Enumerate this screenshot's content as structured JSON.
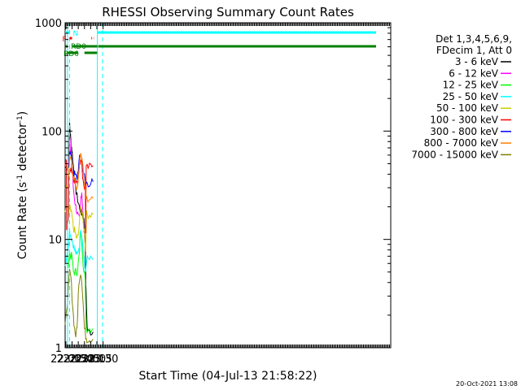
{
  "chart_data": {
    "type": "line",
    "title": "RHESSI Observing Summary Count Rates",
    "xlabel": "Start Time (04-Jul-13 21:58:22)",
    "ylabel_main": "Count Rate (s",
    "ylabel_sup1": "-1",
    "ylabel_mid": " detector",
    "ylabel_sup2": "-1",
    "ylabel_end": ")",
    "yscale": "log",
    "ylim": [
      1,
      1000
    ],
    "xlim_minutes": [
      21.97,
      35.1
    ],
    "xtick_labels": [
      "22:00",
      "22:15",
      "22:30",
      "22:45",
      "23:00",
      "23:15",
      "23:30"
    ],
    "ytick_labels": [
      "1",
      "10",
      "100",
      "1000"
    ],
    "legend_header": [
      "Det 1,3,4,5,6,9,",
      "FDecim 1, Att 0"
    ],
    "legend_position": "right",
    "footer_date": "20-Oct-2021 13:08",
    "flags": {
      "N_label": "N",
      "F_label": "F",
      "RD0_label": "RD0",
      "RD6_label": "RD6"
    },
    "series": [
      {
        "name": "3 - 6 keV",
        "color": "#000000",
        "points": [
          [
            21.97,
            46
          ],
          [
            22.05,
            47
          ],
          [
            22.1,
            48
          ],
          [
            22.12,
            52
          ],
          [
            22.15,
            118
          ],
          [
            22.18,
            95
          ],
          [
            22.2,
            80
          ],
          [
            22.23,
            72
          ],
          [
            22.26,
            62
          ],
          [
            22.3,
            48
          ],
          [
            22.33,
            40
          ],
          [
            22.37,
            33
          ],
          [
            22.41,
            28
          ],
          [
            22.45,
            25
          ],
          [
            22.5,
            22
          ],
          [
            22.54,
            20
          ],
          [
            22.58,
            19
          ],
          [
            22.62,
            18
          ],
          [
            22.66,
            17
          ],
          [
            22.7,
            16
          ],
          [
            22.75,
            14
          ],
          [
            22.78,
            10
          ],
          [
            22.8,
            4
          ],
          [
            22.83,
            2.5
          ],
          [
            22.86,
            1.5
          ],
          [
            22.9,
            1.4
          ],
          [
            23.0,
            1.4
          ],
          [
            23.1,
            1.4
          ]
        ]
      },
      {
        "name": "6 - 12 keV",
        "color": "#ff00ff",
        "points": [
          [
            22.1,
            48
          ],
          [
            22.15,
            65
          ],
          [
            22.18,
            60
          ],
          [
            22.21,
            80
          ],
          [
            22.23,
            55
          ],
          [
            22.25,
            45
          ],
          [
            22.3,
            30
          ],
          [
            22.35,
            24
          ],
          [
            22.4,
            20
          ],
          [
            22.45,
            18
          ],
          [
            22.5,
            16
          ],
          [
            22.55,
            15
          ],
          [
            22.58,
            18
          ],
          [
            22.61,
            25
          ],
          [
            22.64,
            28
          ],
          [
            22.66,
            24
          ],
          [
            22.7,
            16
          ],
          [
            22.73,
            12
          ],
          [
            22.76,
            10
          ]
        ]
      },
      {
        "name": "12 - 25 keV",
        "color": "#00ff00",
        "points": [
          [
            22.1,
            6
          ],
          [
            22.15,
            7.5
          ],
          [
            22.2,
            7
          ],
          [
            22.25,
            7
          ],
          [
            22.3,
            5
          ],
          [
            22.35,
            5
          ],
          [
            22.4,
            5
          ],
          [
            22.45,
            5
          ],
          [
            22.5,
            6
          ],
          [
            22.55,
            7.5
          ],
          [
            22.6,
            12
          ],
          [
            22.65,
            9
          ],
          [
            22.7,
            6
          ],
          [
            22.75,
            5
          ],
          [
            22.78,
            4
          ],
          [
            22.82,
            1.5
          ],
          [
            22.9,
            1.5
          ],
          [
            23.0,
            1.5
          ],
          [
            23.1,
            1.5
          ]
        ]
      },
      {
        "name": "25 - 50 keV",
        "color": "#00ffff",
        "points": [
          [
            21.97,
            6
          ],
          [
            22.05,
            7
          ],
          [
            22.1,
            9
          ],
          [
            22.15,
            12
          ],
          [
            22.2,
            11
          ],
          [
            22.25,
            10
          ],
          [
            22.3,
            9
          ],
          [
            22.35,
            8
          ],
          [
            22.4,
            7.5
          ],
          [
            22.45,
            7
          ],
          [
            22.5,
            8
          ],
          [
            22.55,
            9
          ],
          [
            22.6,
            13
          ],
          [
            22.65,
            11
          ],
          [
            22.7,
            8
          ],
          [
            22.75,
            6
          ],
          [
            22.78,
            5
          ],
          [
            22.8,
            5
          ],
          [
            22.83,
            6.5
          ],
          [
            22.9,
            6.5
          ],
          [
            23.0,
            6.5
          ],
          [
            23.1,
            6.5
          ]
        ]
      },
      {
        "name": "50 - 100 keV",
        "color": "#cccc00",
        "points": [
          [
            21.97,
            18
          ],
          [
            22.05,
            19
          ],
          [
            22.1,
            16
          ],
          [
            22.15,
            20
          ],
          [
            22.2,
            18
          ],
          [
            22.25,
            16
          ],
          [
            22.3,
            13
          ],
          [
            22.35,
            12
          ],
          [
            22.4,
            11
          ],
          [
            22.45,
            10
          ],
          [
            22.5,
            11
          ],
          [
            22.55,
            14
          ],
          [
            22.6,
            22
          ],
          [
            22.65,
            18
          ],
          [
            22.7,
            14
          ],
          [
            22.75,
            12
          ],
          [
            22.78,
            9
          ],
          [
            22.8,
            8
          ],
          [
            22.83,
            17
          ],
          [
            22.9,
            17
          ],
          [
            23.0,
            17
          ],
          [
            23.1,
            17
          ]
        ]
      },
      {
        "name": "100 - 300 keV",
        "color": "#ff0000",
        "points": [
          [
            21.97,
            50
          ],
          [
            22.02,
            55
          ],
          [
            22.03,
            12
          ],
          [
            22.05,
            14
          ],
          [
            22.1,
            16
          ],
          [
            22.12,
            40
          ],
          [
            22.15,
            44
          ],
          [
            22.2,
            46
          ],
          [
            22.25,
            42
          ],
          [
            22.3,
            38
          ],
          [
            22.35,
            36
          ],
          [
            22.4,
            35
          ],
          [
            22.45,
            32
          ],
          [
            22.5,
            38
          ],
          [
            22.55,
            50
          ],
          [
            22.6,
            58
          ],
          [
            22.65,
            45
          ],
          [
            22.7,
            35
          ],
          [
            22.75,
            30
          ],
          [
            22.78,
            32
          ],
          [
            22.8,
            12
          ],
          [
            22.82,
            45
          ],
          [
            22.9,
            46
          ],
          [
            23.0,
            47
          ],
          [
            23.1,
            48
          ]
        ]
      },
      {
        "name": "300 - 800 keV",
        "color": "#0000ff",
        "points": [
          [
            22.12,
            50
          ],
          [
            22.15,
            65
          ],
          [
            22.2,
            60
          ],
          [
            22.25,
            45
          ],
          [
            22.3,
            42
          ],
          [
            22.35,
            40
          ],
          [
            22.4,
            38
          ],
          [
            22.45,
            37
          ],
          [
            22.5,
            45
          ],
          [
            22.55,
            55
          ],
          [
            22.6,
            62
          ],
          [
            22.65,
            55
          ],
          [
            22.7,
            45
          ],
          [
            22.75,
            38
          ],
          [
            22.8,
            33
          ],
          [
            22.85,
            33
          ],
          [
            22.9,
            33
          ],
          [
            23.0,
            33
          ],
          [
            23.1,
            34
          ]
        ]
      },
      {
        "name": "800 - 7000 keV",
        "color": "#ff8000",
        "points": [
          [
            21.97,
            28
          ],
          [
            22.05,
            30
          ],
          [
            22.1,
            38
          ],
          [
            22.15,
            55
          ],
          [
            22.2,
            60
          ],
          [
            22.25,
            52
          ],
          [
            22.3,
            36
          ],
          [
            22.35,
            34
          ],
          [
            22.4,
            32
          ],
          [
            22.45,
            30
          ],
          [
            22.5,
            36
          ],
          [
            22.55,
            55
          ],
          [
            22.6,
            62
          ],
          [
            22.65,
            55
          ],
          [
            22.7,
            45
          ],
          [
            22.75,
            35
          ],
          [
            22.8,
            28
          ],
          [
            22.85,
            24
          ],
          [
            22.9,
            24
          ],
          [
            23.0,
            24
          ],
          [
            23.1,
            24
          ]
        ]
      },
      {
        "name": "7000 - 15000 keV",
        "color": "#808000",
        "points": [
          [
            21.97,
            1.5
          ],
          [
            22.05,
            2.5
          ],
          [
            22.1,
            3.5
          ],
          [
            22.15,
            5
          ],
          [
            22.2,
            4.5
          ],
          [
            22.25,
            3
          ],
          [
            22.3,
            2
          ],
          [
            22.35,
            1.5
          ],
          [
            22.4,
            1.3
          ],
          [
            22.45,
            1.5
          ],
          [
            22.5,
            3
          ],
          [
            22.55,
            4.5
          ],
          [
            22.6,
            5
          ],
          [
            22.65,
            4
          ],
          [
            22.7,
            2.5
          ],
          [
            22.75,
            1.5
          ],
          [
            22.8,
            1.3
          ],
          [
            22.85,
            1.2
          ],
          [
            22.9,
            1.2
          ],
          [
            23.0,
            1.2
          ],
          [
            23.1,
            1.2
          ]
        ]
      }
    ]
  }
}
